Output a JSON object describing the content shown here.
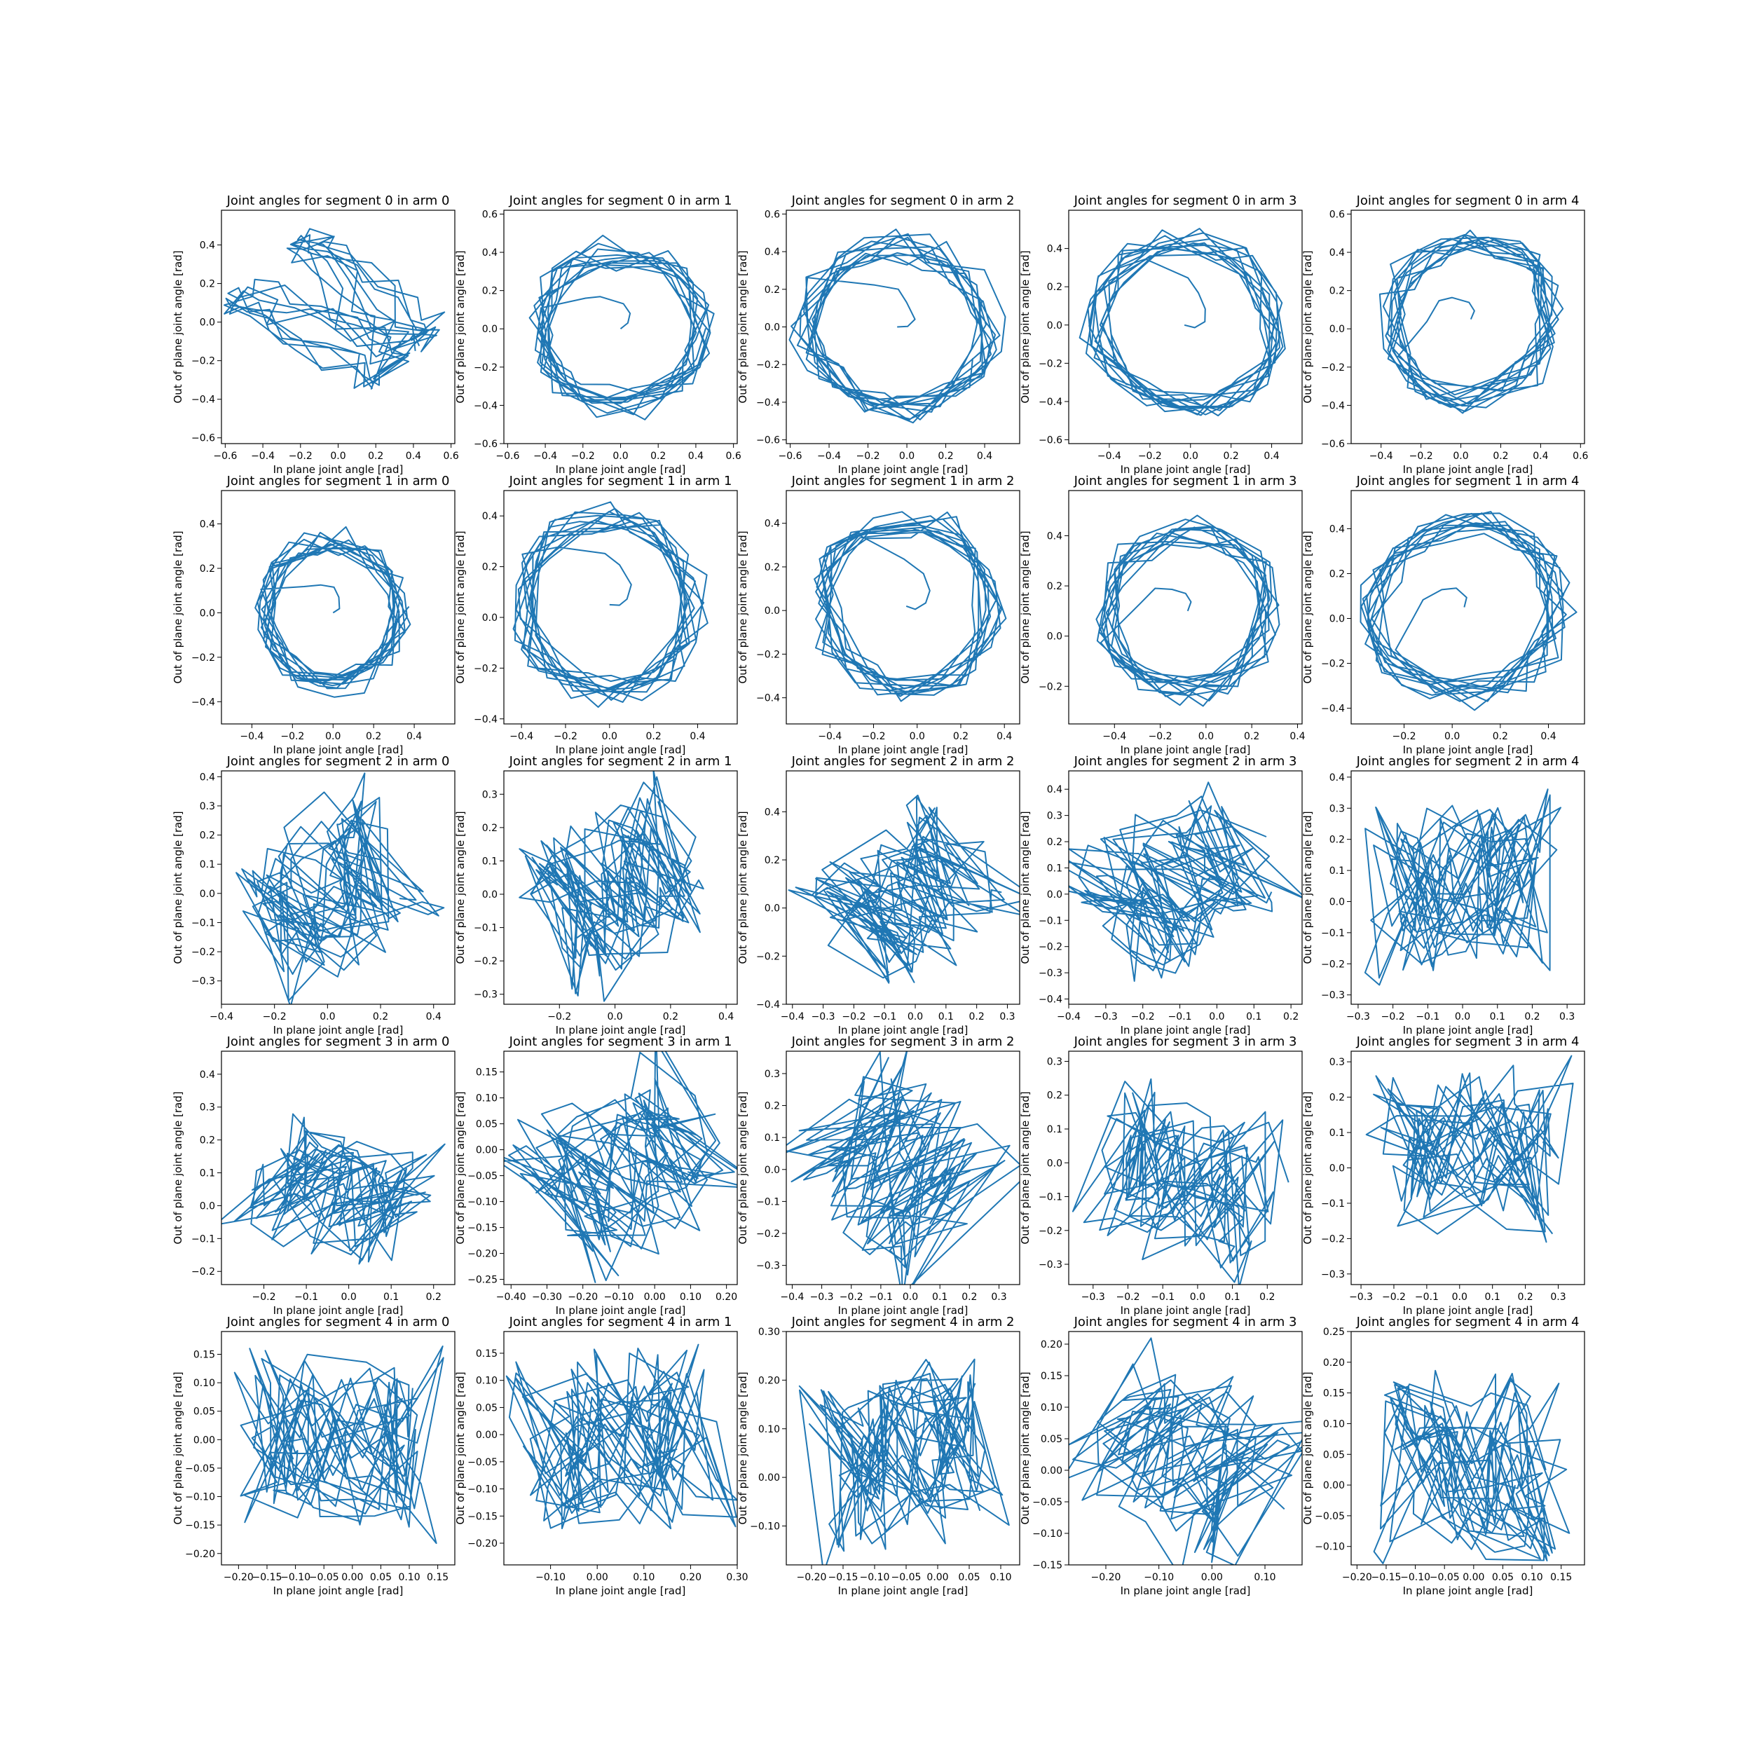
{
  "figure": {
    "background": "#ffffff",
    "line_color": "#1f77b4",
    "layout": {
      "rows": 5,
      "cols": 5
    }
  },
  "chart_data": [
    {
      "type": "line",
      "title": "Joint angles for segment 0 in arm 0",
      "xlabel": "In plane joint angle [rad]",
      "ylabel": "Out of plane joint angle [rad]",
      "xlim": [
        -0.62,
        0.62
      ],
      "ylim": [
        -0.63,
        0.58
      ],
      "xticks": [
        -0.6,
        -0.4,
        -0.2,
        0.0,
        0.2,
        0.4,
        0.6
      ],
      "yticks": [
        -0.6,
        -0.4,
        -0.2,
        0.0,
        0.2,
        0.4
      ],
      "tick_decimals": 1,
      "grid": false,
      "shape": "sweep",
      "params": {
        "cx": 0.0,
        "cy": 0.05,
        "rx": 0.55,
        "ry": 0.4,
        "r": -0.75,
        "revs": 10
      }
    },
    {
      "type": "line",
      "title": "Joint angles for segment 0 in arm 1",
      "xlabel": "In plane joint angle [rad]",
      "ylabel": "Out of plane joint angle [rad]",
      "xlim": [
        -0.62,
        0.62
      ],
      "ylim": [
        -0.6,
        0.62
      ],
      "xticks": [
        -0.6,
        -0.4,
        -0.2,
        0.0,
        0.2,
        0.4,
        0.6
      ],
      "yticks": [
        -0.6,
        -0.4,
        -0.2,
        0.0,
        0.2,
        0.4,
        0.6
      ],
      "tick_decimals": 1,
      "grid": false,
      "shape": "ellipse",
      "params": {
        "cx": 0.0,
        "cy": 0.0,
        "rx": 0.5,
        "ry": 0.48,
        "r": 0.0,
        "revs": 12
      }
    },
    {
      "type": "line",
      "title": "Joint angles for segment 0 in arm 2",
      "xlabel": "In plane joint angle [rad]",
      "ylabel": "Out of plane joint angle [rad]",
      "xlim": [
        -0.62,
        0.58
      ],
      "ylim": [
        -0.62,
        0.62
      ],
      "xticks": [
        -0.6,
        -0.4,
        -0.2,
        0.0,
        0.2,
        0.4
      ],
      "yticks": [
        -0.6,
        -0.4,
        -0.2,
        0.0,
        0.2,
        0.4,
        0.6
      ],
      "tick_decimals": 1,
      "grid": false,
      "shape": "ellipse",
      "params": {
        "cx": -0.05,
        "cy": 0.0,
        "rx": 0.55,
        "ry": 0.52,
        "r": -0.45,
        "revs": 12
      }
    },
    {
      "type": "line",
      "title": "Joint angles for segment 0 in arm 3",
      "xlabel": "In plane joint angle [rad]",
      "ylabel": "Out of plane joint angle [rad]",
      "xlim": [
        -0.6,
        0.55
      ],
      "ylim": [
        -0.62,
        0.6
      ],
      "xticks": [
        -0.4,
        -0.2,
        0.0,
        0.2,
        0.4
      ],
      "yticks": [
        -0.6,
        -0.4,
        -0.2,
        0.0,
        0.2,
        0.4
      ],
      "tick_decimals": 1,
      "grid": false,
      "shape": "ellipse",
      "params": {
        "cx": -0.03,
        "cy": 0.0,
        "rx": 0.52,
        "ry": 0.5,
        "r": -0.93,
        "revs": 12
      }
    },
    {
      "type": "line",
      "title": "Joint angles for segment 0 in arm 4",
      "xlabel": "In plane joint angle [rad]",
      "ylabel": "Out of plane joint angle [rad]",
      "xlim": [
        -0.55,
        0.62
      ],
      "ylim": [
        -0.6,
        0.62
      ],
      "xticks": [
        -0.4,
        -0.2,
        0.0,
        0.2,
        0.4,
        0.6
      ],
      "yticks": [
        -0.6,
        -0.4,
        -0.2,
        0.0,
        0.2,
        0.4,
        0.6
      ],
      "tick_decimals": 1,
      "grid": false,
      "shape": "ellipse",
      "params": {
        "cx": 0.05,
        "cy": 0.05,
        "rx": 0.47,
        "ry": 0.48,
        "r": 0.7,
        "revs": 12
      }
    },
    {
      "type": "line",
      "title": "Joint angles for segment 1 in arm 0",
      "xlabel": "In plane joint angle [rad]",
      "ylabel": "Out of plane joint angle [rad]",
      "xlim": [
        -0.55,
        0.6
      ],
      "ylim": [
        -0.5,
        0.55
      ],
      "xticks": [
        -0.4,
        -0.2,
        0.0,
        0.2,
        0.4
      ],
      "yticks": [
        -0.4,
        -0.2,
        0.0,
        0.2,
        0.4
      ],
      "tick_decimals": 1,
      "grid": false,
      "shape": "ellipse",
      "params": {
        "cx": 0.0,
        "cy": 0.0,
        "rx": 0.38,
        "ry": 0.38,
        "r": 0.0,
        "revs": 12
      }
    },
    {
      "type": "line",
      "title": "Joint angles for segment 1 in arm 1",
      "xlabel": "In plane joint angle [rad]",
      "ylabel": "Out of plane joint angle [rad]",
      "xlim": [
        -0.48,
        0.58
      ],
      "ylim": [
        -0.42,
        0.5
      ],
      "xticks": [
        -0.4,
        -0.2,
        0.0,
        0.2,
        0.4
      ],
      "yticks": [
        -0.4,
        -0.2,
        0.0,
        0.2,
        0.4
      ],
      "tick_decimals": 1,
      "grid": false,
      "shape": "ellipse",
      "params": {
        "cx": 0.0,
        "cy": 0.05,
        "rx": 0.45,
        "ry": 0.4,
        "r": -0.75,
        "revs": 12
      }
    },
    {
      "type": "line",
      "title": "Joint angles for segment 1 in arm 2",
      "xlabel": "In plane joint angle [rad]",
      "ylabel": "Out of plane joint angle [rad]",
      "xlim": [
        -0.6,
        0.47
      ],
      "ylim": [
        -0.52,
        0.55
      ],
      "xticks": [
        -0.4,
        -0.2,
        0.0,
        0.2,
        0.4
      ],
      "yticks": [
        -0.4,
        -0.2,
        0.0,
        0.2,
        0.4
      ],
      "tick_decimals": 1,
      "grid": false,
      "shape": "ellipse",
      "params": {
        "cx": -0.05,
        "cy": 0.02,
        "rx": 0.45,
        "ry": 0.45,
        "r": -0.85,
        "revs": 12
      }
    },
    {
      "type": "line",
      "title": "Joint angles for segment 1 in arm 3",
      "xlabel": "In plane joint angle [rad]",
      "ylabel": "Out of plane joint angle [rad]",
      "xlim": [
        -0.6,
        0.42
      ],
      "ylim": [
        -0.35,
        0.58
      ],
      "xticks": [
        -0.4,
        -0.2,
        0.0,
        0.2,
        0.4
      ],
      "yticks": [
        -0.2,
        0.0,
        0.2,
        0.4
      ],
      "tick_decimals": 1,
      "grid": false,
      "shape": "ellipse",
      "params": {
        "cx": -0.08,
        "cy": 0.1,
        "rx": 0.42,
        "ry": 0.38,
        "r": 0.55,
        "revs": 12
      }
    },
    {
      "type": "line",
      "title": "Joint angles for segment 1 in arm 4",
      "xlabel": "In plane joint angle [rad]",
      "ylabel": "Out of plane joint angle [rad]",
      "xlim": [
        -0.42,
        0.55
      ],
      "ylim": [
        -0.47,
        0.57
      ],
      "xticks": [
        -0.2,
        0.0,
        0.2,
        0.4
      ],
      "yticks": [
        -0.4,
        -0.2,
        0.0,
        0.2,
        0.4
      ],
      "tick_decimals": 1,
      "grid": false,
      "shape": "ellipse",
      "params": {
        "cx": 0.05,
        "cy": 0.05,
        "rx": 0.45,
        "ry": 0.45,
        "r": 0.85,
        "revs": 12
      }
    },
    {
      "type": "line",
      "title": "Joint angles for segment 2 in arm 0",
      "xlabel": "In plane joint angle [rad]",
      "ylabel": "Out of plane joint angle [rad]",
      "xlim": [
        -0.4,
        0.48
      ],
      "ylim": [
        -0.38,
        0.42
      ],
      "xticks": [
        -0.4,
        -0.2,
        0.0,
        0.2,
        0.4
      ],
      "yticks": [
        -0.3,
        -0.2,
        -0.1,
        0.0,
        0.1,
        0.2,
        0.3,
        0.4
      ],
      "tick_decimals": 1,
      "grid": false,
      "shape": "scribble",
      "params": {
        "cx": 0.0,
        "cy": 0.0,
        "rx": 0.34,
        "ry": 0.3,
        "r": 0.55,
        "revs": 14
      }
    },
    {
      "type": "line",
      "title": "Joint angles for segment 2 in arm 1",
      "xlabel": "In plane joint angle [rad]",
      "ylabel": "Out of plane joint angle [rad]",
      "xlim": [
        -0.4,
        0.44
      ],
      "ylim": [
        -0.33,
        0.37
      ],
      "xticks": [
        -0.2,
        0.0,
        0.2,
        0.4
      ],
      "yticks": [
        -0.3,
        -0.2,
        -0.1,
        0.0,
        0.1,
        0.2,
        0.3
      ],
      "tick_decimals": 1,
      "grid": false,
      "shape": "scribble",
      "params": {
        "cx": 0.0,
        "cy": 0.02,
        "rx": 0.32,
        "ry": 0.28,
        "r": 0.45,
        "revs": 14
      }
    },
    {
      "type": "line",
      "title": "Joint angles for segment 2 in arm 2",
      "xlabel": "In plane joint angle [rad]",
      "ylabel": "Out of plane joint angle [rad]",
      "xlim": [
        -0.42,
        0.34
      ],
      "ylim": [
        -0.4,
        0.57
      ],
      "xticks": [
        -0.4,
        -0.3,
        -0.2,
        -0.1,
        0.0,
        0.1,
        0.2,
        0.3
      ],
      "yticks": [
        -0.4,
        -0.2,
        0.0,
        0.2,
        0.4
      ],
      "tick_decimals": 1,
      "grid": false,
      "shape": "scribble",
      "params": {
        "cx": -0.02,
        "cy": 0.05,
        "rx": 0.32,
        "ry": 0.32,
        "r": 0.7,
        "revs": 14
      }
    },
    {
      "type": "line",
      "title": "Joint angles for segment 2 in arm 3",
      "xlabel": "In plane joint angle [rad]",
      "ylabel": "Out of plane joint angle [rad]",
      "xlim": [
        -0.4,
        0.23
      ],
      "ylim": [
        -0.42,
        0.47
      ],
      "xticks": [
        -0.4,
        -0.3,
        -0.2,
        -0.1,
        0.0,
        0.1,
        0.2
      ],
      "yticks": [
        -0.4,
        -0.3,
        -0.2,
        -0.1,
        0.0,
        0.1,
        0.2,
        0.3,
        0.4
      ],
      "tick_decimals": 1,
      "grid": false,
      "shape": "scribble",
      "params": {
        "cx": -0.1,
        "cy": 0.02,
        "rx": 0.3,
        "ry": 0.3,
        "r": 0.6,
        "revs": 14
      }
    },
    {
      "type": "line",
      "title": "Joint angles for segment 2 in arm 4",
      "xlabel": "In plane joint angle [rad]",
      "ylabel": "Out of plane joint angle [rad]",
      "xlim": [
        -0.32,
        0.35
      ],
      "ylim": [
        -0.33,
        0.42
      ],
      "xticks": [
        -0.3,
        -0.2,
        -0.1,
        0.0,
        0.1,
        0.2,
        0.3
      ],
      "yticks": [
        -0.3,
        -0.2,
        -0.1,
        0.0,
        0.1,
        0.2,
        0.3,
        0.4
      ],
      "tick_decimals": 1,
      "grid": false,
      "shape": "scribble",
      "params": {
        "cx": 0.0,
        "cy": 0.05,
        "rx": 0.27,
        "ry": 0.3,
        "r": 0.0,
        "revs": 14
      }
    },
    {
      "type": "line",
      "title": "Joint angles for segment 3 in arm 0",
      "xlabel": "In plane joint angle [rad]",
      "ylabel": "Out of plane joint angle [rad]",
      "xlim": [
        -0.3,
        0.25
      ],
      "ylim": [
        -0.24,
        0.47
      ],
      "xticks": [
        -0.2,
        -0.1,
        0.0,
        0.1,
        0.2
      ],
      "yticks": [
        -0.2,
        -0.1,
        0.0,
        0.1,
        0.2,
        0.3,
        0.4
      ],
      "tick_decimals": 1,
      "grid": false,
      "shape": "scribble",
      "params": {
        "cx": -0.03,
        "cy": 0.05,
        "rx": 0.22,
        "ry": 0.2,
        "r": -0.4,
        "revs": 14
      }
    },
    {
      "type": "line",
      "title": "Joint angles for segment 3 in arm 1",
      "xlabel": "In plane joint angle [rad]",
      "ylabel": "Out of plane joint angle [rad]",
      "xlim": [
        -0.42,
        0.23
      ],
      "ylim": [
        -0.26,
        0.19
      ],
      "xticks": [
        -0.4,
        -0.3,
        -0.2,
        -0.1,
        0.0,
        0.1,
        0.2
      ],
      "yticks": [
        -0.25,
        -0.2,
        -0.15,
        -0.1,
        -0.05,
        0.0,
        0.05,
        0.1,
        0.15
      ],
      "tick_decimals": 2,
      "grid": false,
      "shape": "scribble",
      "params": {
        "cx": -0.08,
        "cy": -0.03,
        "rx": 0.3,
        "ry": 0.19,
        "r": 0.6,
        "revs": 14
      }
    },
    {
      "type": "line",
      "title": "Joint angles for segment 3 in arm 2",
      "xlabel": "In plane joint angle [rad]",
      "ylabel": "Out of plane joint angle [rad]",
      "xlim": [
        -0.42,
        0.37
      ],
      "ylim": [
        -0.36,
        0.37
      ],
      "xticks": [
        -0.4,
        -0.3,
        -0.2,
        -0.1,
        0.0,
        0.1,
        0.2,
        0.3
      ],
      "yticks": [
        -0.3,
        -0.2,
        -0.1,
        0.0,
        0.1,
        0.2,
        0.3
      ],
      "tick_decimals": 1,
      "grid": false,
      "shape": "scribble",
      "params": {
        "cx": -0.05,
        "cy": 0.0,
        "rx": 0.34,
        "ry": 0.3,
        "r": -0.75,
        "revs": 14
      }
    },
    {
      "type": "line",
      "title": "Joint angles for segment 3 in arm 3",
      "xlabel": "In plane joint angle [rad]",
      "ylabel": "Out of plane joint angle [rad]",
      "xlim": [
        -0.37,
        0.3
      ],
      "ylim": [
        -0.36,
        0.33
      ],
      "xticks": [
        -0.3,
        -0.2,
        -0.1,
        0.0,
        0.1,
        0.2
      ],
      "yticks": [
        -0.3,
        -0.2,
        -0.1,
        0.0,
        0.1,
        0.2,
        0.3
      ],
      "tick_decimals": 1,
      "grid": false,
      "shape": "scribble",
      "params": {
        "cx": -0.03,
        "cy": -0.03,
        "rx": 0.28,
        "ry": 0.28,
        "r": -0.3,
        "revs": 14
      }
    },
    {
      "type": "line",
      "title": "Joint angles for segment 3 in arm 4",
      "xlabel": "In plane joint angle [rad]",
      "ylabel": "Out of plane joint angle [rad]",
      "xlim": [
        -0.33,
        0.38
      ],
      "ylim": [
        -0.33,
        0.33
      ],
      "xticks": [
        -0.3,
        -0.2,
        -0.1,
        0.0,
        0.1,
        0.2,
        0.3
      ],
      "yticks": [
        -0.3,
        -0.2,
        -0.1,
        0.0,
        0.1,
        0.2,
        0.3
      ],
      "tick_decimals": 1,
      "grid": false,
      "shape": "scribble",
      "params": {
        "cx": 0.03,
        "cy": 0.05,
        "rx": 0.3,
        "ry": 0.26,
        "r": 0.0,
        "revs": 14
      }
    },
    {
      "type": "line",
      "title": "Joint angles for segment 4 in arm 0",
      "xlabel": "In plane joint angle [rad]",
      "ylabel": "Out of plane joint angle [rad]",
      "xlim": [
        -0.23,
        0.18
      ],
      "ylim": [
        -0.22,
        0.19
      ],
      "xticks": [
        -0.2,
        -0.15,
        -0.1,
        -0.05,
        0.0,
        0.05,
        0.1,
        0.15
      ],
      "yticks": [
        -0.2,
        -0.15,
        -0.1,
        -0.05,
        0.0,
        0.05,
        0.1,
        0.15
      ],
      "tick_decimals": 2,
      "grid": false,
      "shape": "scribble",
      "params": {
        "cx": -0.03,
        "cy": 0.0,
        "rx": 0.18,
        "ry": 0.17,
        "r": 0.0,
        "revs": 14
      }
    },
    {
      "type": "line",
      "title": "Joint angles for segment 4 in arm 1",
      "xlabel": "In plane joint angle [rad]",
      "ylabel": "Out of plane joint angle [rad]",
      "xlim": [
        -0.2,
        0.3
      ],
      "ylim": [
        -0.24,
        0.19
      ],
      "xticks": [
        -0.1,
        0.0,
        0.1,
        0.2,
        0.3
      ],
      "yticks": [
        -0.2,
        -0.15,
        -0.1,
        -0.05,
        0.0,
        0.05,
        0.1,
        0.15
      ],
      "tick_decimals": 2,
      "grid": false,
      "shape": "scribble",
      "params": {
        "cx": 0.05,
        "cy": -0.02,
        "rx": 0.22,
        "ry": 0.18,
        "r": 0.2,
        "revs": 14
      }
    },
    {
      "type": "line",
      "title": "Joint angles for segment 4 in arm 2",
      "xlabel": "In plane joint angle [rad]",
      "ylabel": "Out of plane joint angle [rad]",
      "xlim": [
        -0.24,
        0.13
      ],
      "ylim": [
        -0.18,
        0.3
      ],
      "xticks": [
        -0.2,
        -0.15,
        -0.1,
        -0.05,
        0.0,
        0.05,
        0.1
      ],
      "yticks": [
        -0.1,
        0.0,
        0.1,
        0.2,
        0.3
      ],
      "tick_decimals": 2,
      "grid": false,
      "shape": "scribble",
      "params": {
        "cx": -0.05,
        "cy": 0.05,
        "rx": 0.16,
        "ry": 0.2,
        "r": 0.2,
        "revs": 14
      }
    },
    {
      "type": "line",
      "title": "Joint angles for segment 4 in arm 3",
      "xlabel": "In plane joint angle [rad]",
      "ylabel": "Out of plane joint angle [rad]",
      "xlim": [
        -0.27,
        0.17
      ],
      "ylim": [
        -0.15,
        0.22
      ],
      "xticks": [
        -0.2,
        -0.1,
        0.0,
        0.1
      ],
      "yticks": [
        -0.15,
        -0.1,
        -0.05,
        0.0,
        0.05,
        0.1,
        0.15,
        0.2
      ],
      "tick_decimals": 2,
      "grid": false,
      "shape": "scribble",
      "params": {
        "cx": -0.05,
        "cy": 0.02,
        "rx": 0.2,
        "ry": 0.16,
        "r": -0.55,
        "revs": 14
      }
    },
    {
      "type": "line",
      "title": "Joint angles for segment 4 in arm 4",
      "xlabel": "In plane joint angle [rad]",
      "ylabel": "Out of plane joint angle [rad]",
      "xlim": [
        -0.21,
        0.19
      ],
      "ylim": [
        -0.13,
        0.25
      ],
      "xticks": [
        -0.2,
        -0.15,
        -0.1,
        -0.05,
        0.0,
        0.05,
        0.1,
        0.15
      ],
      "yticks": [
        -0.1,
        -0.05,
        0.0,
        0.05,
        0.1,
        0.15,
        0.2,
        0.25
      ],
      "tick_decimals": 2,
      "grid": false,
      "shape": "scribble",
      "params": {
        "cx": -0.01,
        "cy": 0.03,
        "rx": 0.17,
        "ry": 0.17,
        "r": 0.0,
        "revs": 14
      }
    }
  ]
}
